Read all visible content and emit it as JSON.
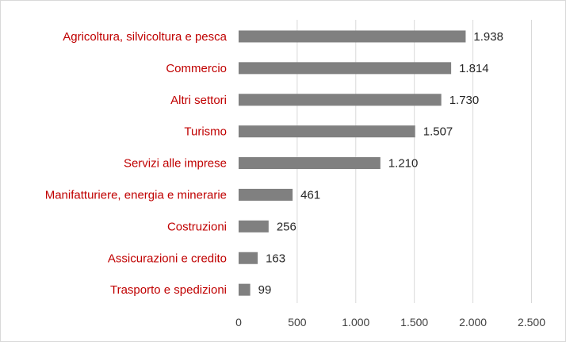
{
  "chart_data": {
    "type": "bar",
    "orientation": "horizontal",
    "categories": [
      "Agricoltura, silvicoltura e pesca",
      "Commercio",
      "Altri settori",
      "Turismo",
      "Servizi alle imprese",
      "Manifatturiere, energia e minerarie",
      "Costruzioni",
      "Assicurazioni e credito",
      "Trasporto e spedizioni"
    ],
    "values": [
      1938,
      1814,
      1730,
      1507,
      1210,
      461,
      256,
      163,
      99
    ],
    "value_labels": [
      "1.938",
      "1.814",
      "1.730",
      "1.507",
      "1.210",
      "461",
      "256",
      "163",
      "99"
    ],
    "x_ticks": [
      0,
      500,
      1000,
      1500,
      2000,
      2500
    ],
    "x_tick_labels": [
      "0",
      "500",
      "1.000",
      "1.500",
      "2.000",
      "2.500"
    ],
    "xlim": [
      0,
      2500
    ],
    "grid": "vertical",
    "legend": "none",
    "colors": {
      "bar": "#808080",
      "category_label": "#c00000",
      "value_label": "#262626",
      "grid": "#d9d9d9"
    }
  }
}
